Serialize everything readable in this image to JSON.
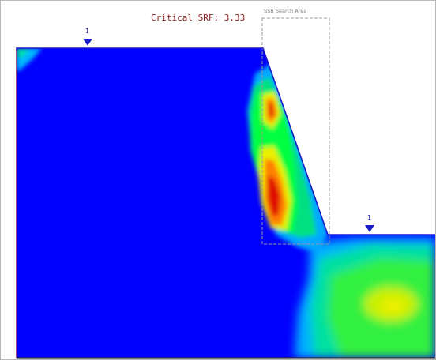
{
  "figure": {
    "critical_srf_text": "Critical SRF: 3.33",
    "search_area_label": "SSR Search Area",
    "water_table_left_label": "1",
    "water_table_right_label": "1"
  },
  "colors": {
    "background": "#0000ff",
    "outline": "#1a1acc",
    "water_table": "#1c1cc8",
    "cyan": "#00c8ff",
    "green": "#00e070",
    "yellow": "#e8f000",
    "orange": "#ff8000",
    "red": "#e01000",
    "title_text": "#8a1a1a"
  },
  "icons": {
    "water_table_marker": "inverted-triangle-icon"
  }
}
